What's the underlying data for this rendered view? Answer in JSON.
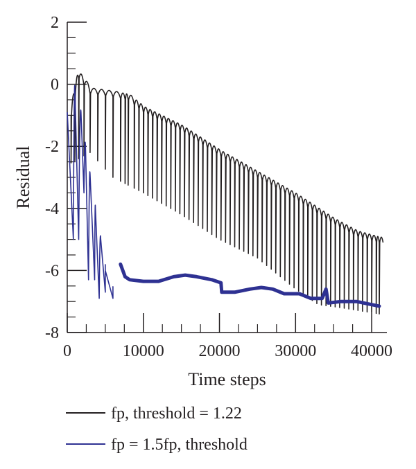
{
  "chart_data": {
    "type": "line",
    "xlabel": "Time steps",
    "ylabel": "Residual",
    "xlim": [
      0,
      42000
    ],
    "ylim": [
      -8,
      2
    ],
    "x_ticks": [
      0,
      10000,
      20000,
      30000,
      40000
    ],
    "y_ticks": [
      -8,
      -6,
      -4,
      -2,
      0,
      2
    ],
    "x_tick_labels": [
      "0",
      "10000",
      "20000",
      "30000",
      "40000"
    ],
    "y_tick_labels": [
      "-8",
      "-6",
      "-4",
      "-2",
      "0",
      "2"
    ],
    "grid": false,
    "legend_position": "below",
    "series": [
      {
        "name": "fp, threshold = 1.22",
        "color": "#231f20",
        "style": "thin-oscillating",
        "env_top": [
          [
            0,
            -1.7
          ],
          [
            500,
            -1.0
          ],
          [
            1500,
            0.2
          ],
          [
            3000,
            -0.3
          ],
          [
            6000,
            -0.4
          ],
          [
            8000,
            -0.5
          ],
          [
            10000,
            -0.9
          ],
          [
            15000,
            -1.5
          ],
          [
            20000,
            -2.3
          ],
          [
            25000,
            -3.0
          ],
          [
            30000,
            -3.7
          ],
          [
            35000,
            -4.5
          ],
          [
            38000,
            -4.9
          ],
          [
            41000,
            -5.1
          ]
        ],
        "env_bottom": [
          [
            0,
            -2.6
          ],
          [
            3000,
            -2.2
          ],
          [
            6000,
            -3.0
          ],
          [
            10000,
            -3.5
          ],
          [
            15000,
            -4.2
          ],
          [
            20000,
            -5.0
          ],
          [
            25000,
            -5.6
          ],
          [
            30000,
            -6.6
          ],
          [
            33000,
            -7.1
          ],
          [
            36000,
            -7.2
          ],
          [
            41000,
            -7.4
          ]
        ],
        "spike_x": [
          500,
          1000,
          1500,
          2200,
          3000,
          4000,
          5000,
          6000,
          7000,
          7600,
          8000,
          8800,
          9400,
          10000,
          10600,
          11200,
          11800,
          12400,
          13000,
          13600,
          14200,
          14800,
          15400,
          16000,
          16600,
          17200,
          17800,
          18400,
          19000,
          19600,
          20200,
          20800,
          21400,
          22000,
          22600,
          23200,
          23800,
          24400,
          25000,
          25600,
          26200,
          26800,
          27400,
          28000,
          28600,
          29200,
          29800,
          30400,
          31000,
          31600,
          32200,
          32800,
          33400,
          34000,
          34600,
          35200,
          35800,
          36400,
          37000,
          37600,
          38200,
          38800,
          39400,
          40000,
          40600,
          41000
        ]
      },
      {
        "name": "fp = 1.5fp, threshold",
        "color": "#2e3192",
        "style": "decaying-oscillation-then-flat",
        "decay_peaks": [
          [
            0,
            -0.9
          ],
          [
            1000,
            -0.1
          ],
          [
            1800,
            -0.9
          ],
          [
            2400,
            -2.0
          ],
          [
            3000,
            -2.9
          ],
          [
            3700,
            -4.0
          ],
          [
            4400,
            -5.0
          ],
          [
            5000,
            -6.0
          ],
          [
            6000,
            -6.8
          ]
        ],
        "decay_bottoms": [
          [
            800,
            -5.0
          ],
          [
            1500,
            -5.0
          ],
          [
            2200,
            -3.5
          ],
          [
            2800,
            -6.3
          ],
          [
            3600,
            -6.3
          ],
          [
            4200,
            -6.9
          ],
          [
            5000,
            -6.7
          ],
          [
            6000,
            -6.9
          ]
        ],
        "flat_points": [
          [
            7000,
            -5.8
          ],
          [
            7600,
            -6.2
          ],
          [
            8200,
            -6.3
          ],
          [
            10000,
            -6.35
          ],
          [
            12000,
            -6.35
          ],
          [
            14000,
            -6.2
          ],
          [
            15500,
            -6.15
          ],
          [
            17000,
            -6.2
          ],
          [
            19000,
            -6.3
          ],
          [
            20200,
            -6.4
          ],
          [
            20300,
            -6.7
          ],
          [
            22000,
            -6.7
          ],
          [
            24000,
            -6.6
          ],
          [
            25500,
            -6.55
          ],
          [
            27000,
            -6.6
          ],
          [
            28500,
            -6.75
          ],
          [
            30500,
            -6.75
          ],
          [
            32000,
            -6.9
          ],
          [
            33500,
            -6.9
          ],
          [
            34000,
            -6.6
          ],
          [
            34300,
            -7.05
          ],
          [
            36000,
            -7.0
          ],
          [
            38000,
            -7.0
          ],
          [
            40000,
            -7.1
          ],
          [
            41000,
            -7.15
          ]
        ]
      }
    ]
  }
}
